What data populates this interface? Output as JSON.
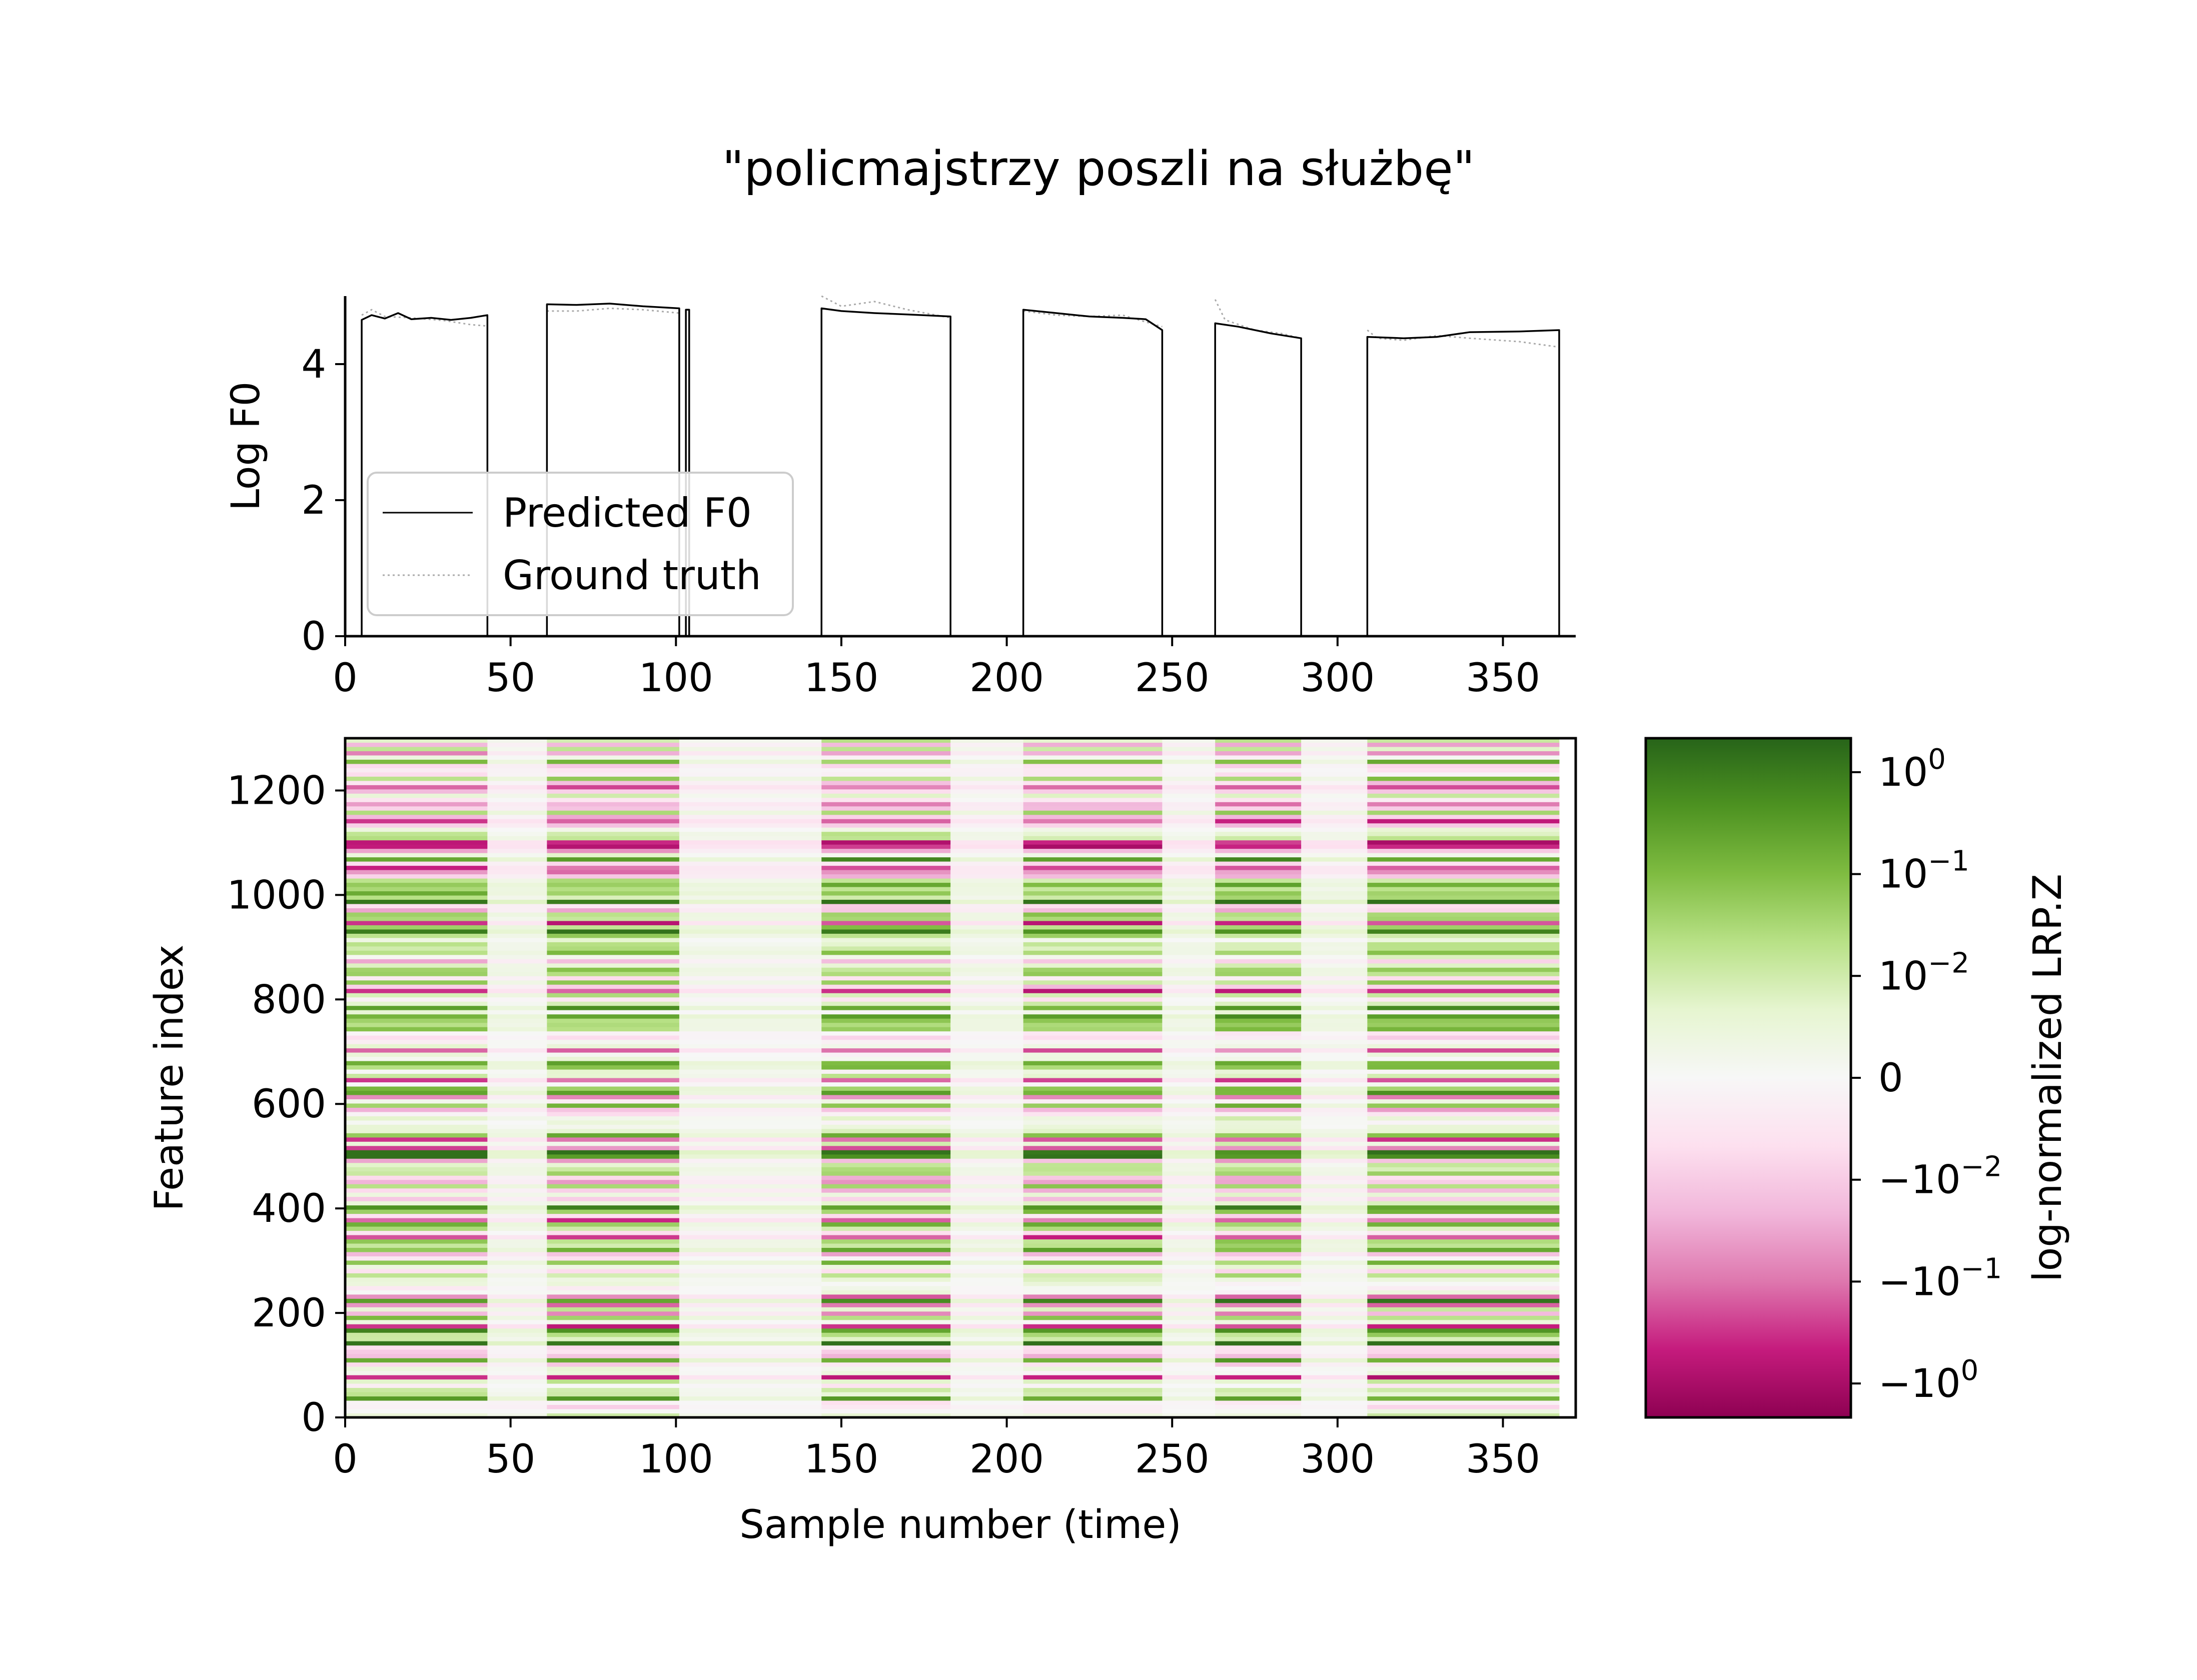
{
  "title": "\"policmajstrzy poszli na służbę\"",
  "chart_data": [
    {
      "type": "line",
      "ylabel": "Log F0",
      "xlabel": "",
      "xlim": [
        0,
        372
      ],
      "ylim": [
        0,
        5
      ],
      "xticks": [
        "0",
        "50",
        "100",
        "150",
        "200",
        "250",
        "300",
        "350"
      ],
      "yticks": [
        "0",
        "2",
        "4"
      ],
      "legend_position": "lower-left",
      "segments": [
        [
          5,
          43
        ],
        [
          61,
          101
        ],
        [
          103,
          104
        ],
        [
          144,
          183
        ],
        [
          205,
          247
        ],
        [
          263,
          289
        ],
        [
          309,
          367
        ]
      ],
      "series": [
        {
          "name": "Predicted F0",
          "style": "solid",
          "color": "#000000",
          "points": [
            [
              5,
              4.65
            ],
            [
              8,
              4.72
            ],
            [
              12,
              4.67
            ],
            [
              16,
              4.75
            ],
            [
              20,
              4.66
            ],
            [
              26,
              4.68
            ],
            [
              32,
              4.65
            ],
            [
              38,
              4.68
            ],
            [
              43,
              4.72
            ],
            [
              61,
              4.88
            ],
            [
              70,
              4.87
            ],
            [
              80,
              4.89
            ],
            [
              90,
              4.85
            ],
            [
              101,
              4.82
            ],
            [
              103,
              4.8
            ],
            [
              104,
              4.8
            ],
            [
              144,
              4.82
            ],
            [
              150,
              4.78
            ],
            [
              160,
              4.75
            ],
            [
              170,
              4.73
            ],
            [
              183,
              4.7
            ],
            [
              205,
              4.8
            ],
            [
              215,
              4.75
            ],
            [
              225,
              4.7
            ],
            [
              235,
              4.68
            ],
            [
              242,
              4.66
            ],
            [
              247,
              4.5
            ],
            [
              263,
              4.6
            ],
            [
              270,
              4.55
            ],
            [
              280,
              4.45
            ],
            [
              289,
              4.38
            ],
            [
              309,
              4.4
            ],
            [
              320,
              4.38
            ],
            [
              330,
              4.4
            ],
            [
              340,
              4.47
            ],
            [
              355,
              4.48
            ],
            [
              367,
              4.5
            ]
          ]
        },
        {
          "name": "Ground truth",
          "style": "dotted",
          "color": "#aaaaaa",
          "points": [
            [
              5,
              4.72
            ],
            [
              8,
              4.8
            ],
            [
              12,
              4.7
            ],
            [
              20,
              4.68
            ],
            [
              30,
              4.64
            ],
            [
              38,
              4.58
            ],
            [
              43,
              4.56
            ],
            [
              61,
              4.78
            ],
            [
              70,
              4.78
            ],
            [
              80,
              4.82
            ],
            [
              90,
              4.8
            ],
            [
              101,
              4.75
            ],
            [
              144,
              5.0
            ],
            [
              150,
              4.85
            ],
            [
              160,
              4.92
            ],
            [
              170,
              4.8
            ],
            [
              183,
              4.68
            ],
            [
              205,
              4.78
            ],
            [
              215,
              4.72
            ],
            [
              225,
              4.7
            ],
            [
              235,
              4.72
            ],
            [
              242,
              4.62
            ],
            [
              247,
              4.55
            ],
            [
              263,
              4.95
            ],
            [
              266,
              4.65
            ],
            [
              275,
              4.5
            ],
            [
              283,
              4.45
            ],
            [
              289,
              4.38
            ],
            [
              309,
              4.5
            ],
            [
              312,
              4.38
            ],
            [
              320,
              4.35
            ],
            [
              330,
              4.42
            ],
            [
              340,
              4.38
            ],
            [
              355,
              4.33
            ],
            [
              367,
              4.25
            ]
          ]
        }
      ]
    },
    {
      "type": "heatmap",
      "xlabel": "Sample number (time)",
      "ylabel": "Feature index",
      "xlim": [
        0,
        372
      ],
      "ylim": [
        0,
        1300
      ],
      "xticks": [
        "0",
        "50",
        "100",
        "150",
        "200",
        "250",
        "300",
        "350"
      ],
      "yticks": [
        "0",
        "200",
        "400",
        "600",
        "800",
        "1000",
        "1200"
      ],
      "data_extent_x": [
        0,
        367
      ],
      "data_extent_y": [
        0,
        1300
      ],
      "colormap": "PiYG",
      "low_relevance_columns": [
        [
          43,
          61
        ],
        [
          101,
          144
        ],
        [
          183,
          205
        ],
        [
          247,
          263
        ],
        [
          289,
          309
        ]
      ],
      "colorbar": {
        "label": "log-normalized LRP.Z",
        "tick_labels": [
          "10^0",
          "10^-1",
          "10^-2",
          "0",
          "-10^-2",
          "-10^-1",
          "-10^0"
        ],
        "tick_levels": [
          0.9,
          0.75,
          0.6,
          0.45,
          0.3,
          0.15,
          0.0
        ],
        "colors": [
          "#8e0152",
          "#c51b7d",
          "#de77ae",
          "#f1b6da",
          "#fde0ef",
          "#f7f7f7",
          "#e6f5d0",
          "#b8e186",
          "#7fbc41",
          "#4d9221",
          "#276419"
        ]
      }
    }
  ]
}
